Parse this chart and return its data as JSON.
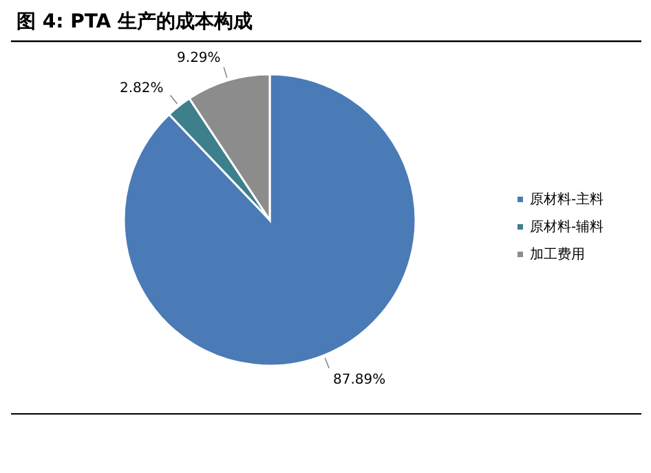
{
  "chart_data": {
    "type": "pie",
    "title": "图 4:  PTA 生产的成本构成",
    "categories": [
      "原材料-主料",
      "原材料-辅料",
      "加工费用"
    ],
    "values": [
      87.89,
      2.82,
      9.29
    ],
    "colors": [
      "#4a7bb7",
      "#3e7f8c",
      "#8c8c8c"
    ],
    "value_labels": [
      "87.89%",
      "2.82%",
      "9.29%"
    ],
    "legend": "right"
  }
}
